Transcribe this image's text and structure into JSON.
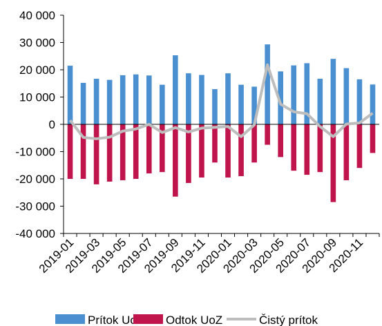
{
  "chart_data": {
    "type": "bar",
    "categories": [
      "2019-01",
      null,
      "2019-03",
      null,
      "2019-05",
      null,
      "2019-07",
      null,
      "2019-09",
      null,
      "2019-11",
      null,
      "2020-01",
      null,
      "2020-03",
      null,
      "2020-05",
      null,
      "2020-07",
      null,
      "2020-09",
      null,
      "2020-11",
      null
    ],
    "series": [
      {
        "name": "Prítok UoZ",
        "color": "#4a90d0",
        "type": "bar",
        "values": [
          21500,
          15200,
          16700,
          16300,
          18000,
          18300,
          17900,
          14500,
          25300,
          18700,
          18100,
          12900,
          18700,
          14500,
          13800,
          29300,
          19400,
          21600,
          22400,
          16700,
          24000,
          20600,
          16500,
          14600
        ]
      },
      {
        "name": "Odtok UoZ",
        "color": "#c0144c",
        "type": "bar",
        "values": [
          -20000,
          -20000,
          -22000,
          -21000,
          -20500,
          -20000,
          -18000,
          -17500,
          -26500,
          -21500,
          -19500,
          -14000,
          -19500,
          -19000,
          -14000,
          -7500,
          -12000,
          -17000,
          -18500,
          -17500,
          -28500,
          -20500,
          -16000,
          -10500
        ]
      },
      {
        "name": "Čistý prítok",
        "color": "#bdbdbd",
        "type": "line",
        "values": [
          1500,
          -4800,
          -5300,
          -4700,
          -2500,
          -1700,
          0,
          -3000,
          -1200,
          -2800,
          -1400,
          -1100,
          -800,
          -4500,
          -200,
          21800,
          7400,
          4600,
          3900,
          -800,
          -4500,
          100,
          500,
          4100
        ]
      }
    ],
    "ylim": [
      -40000,
      40000
    ],
    "yticks": [
      {
        "value": -40000,
        "label": "-40 000"
      },
      {
        "value": -30000,
        "label": "-30 000"
      },
      {
        "value": -20000,
        "label": "-20 000"
      },
      {
        "value": -10000,
        "label": "-10 000"
      },
      0,
      {
        "value": 10000,
        "label": "10 000"
      },
      {
        "value": 20000,
        "label": "20 000"
      },
      {
        "value": 30000,
        "label": "30 000"
      },
      {
        "value": 40000,
        "label": "40 000"
      }
    ]
  }
}
